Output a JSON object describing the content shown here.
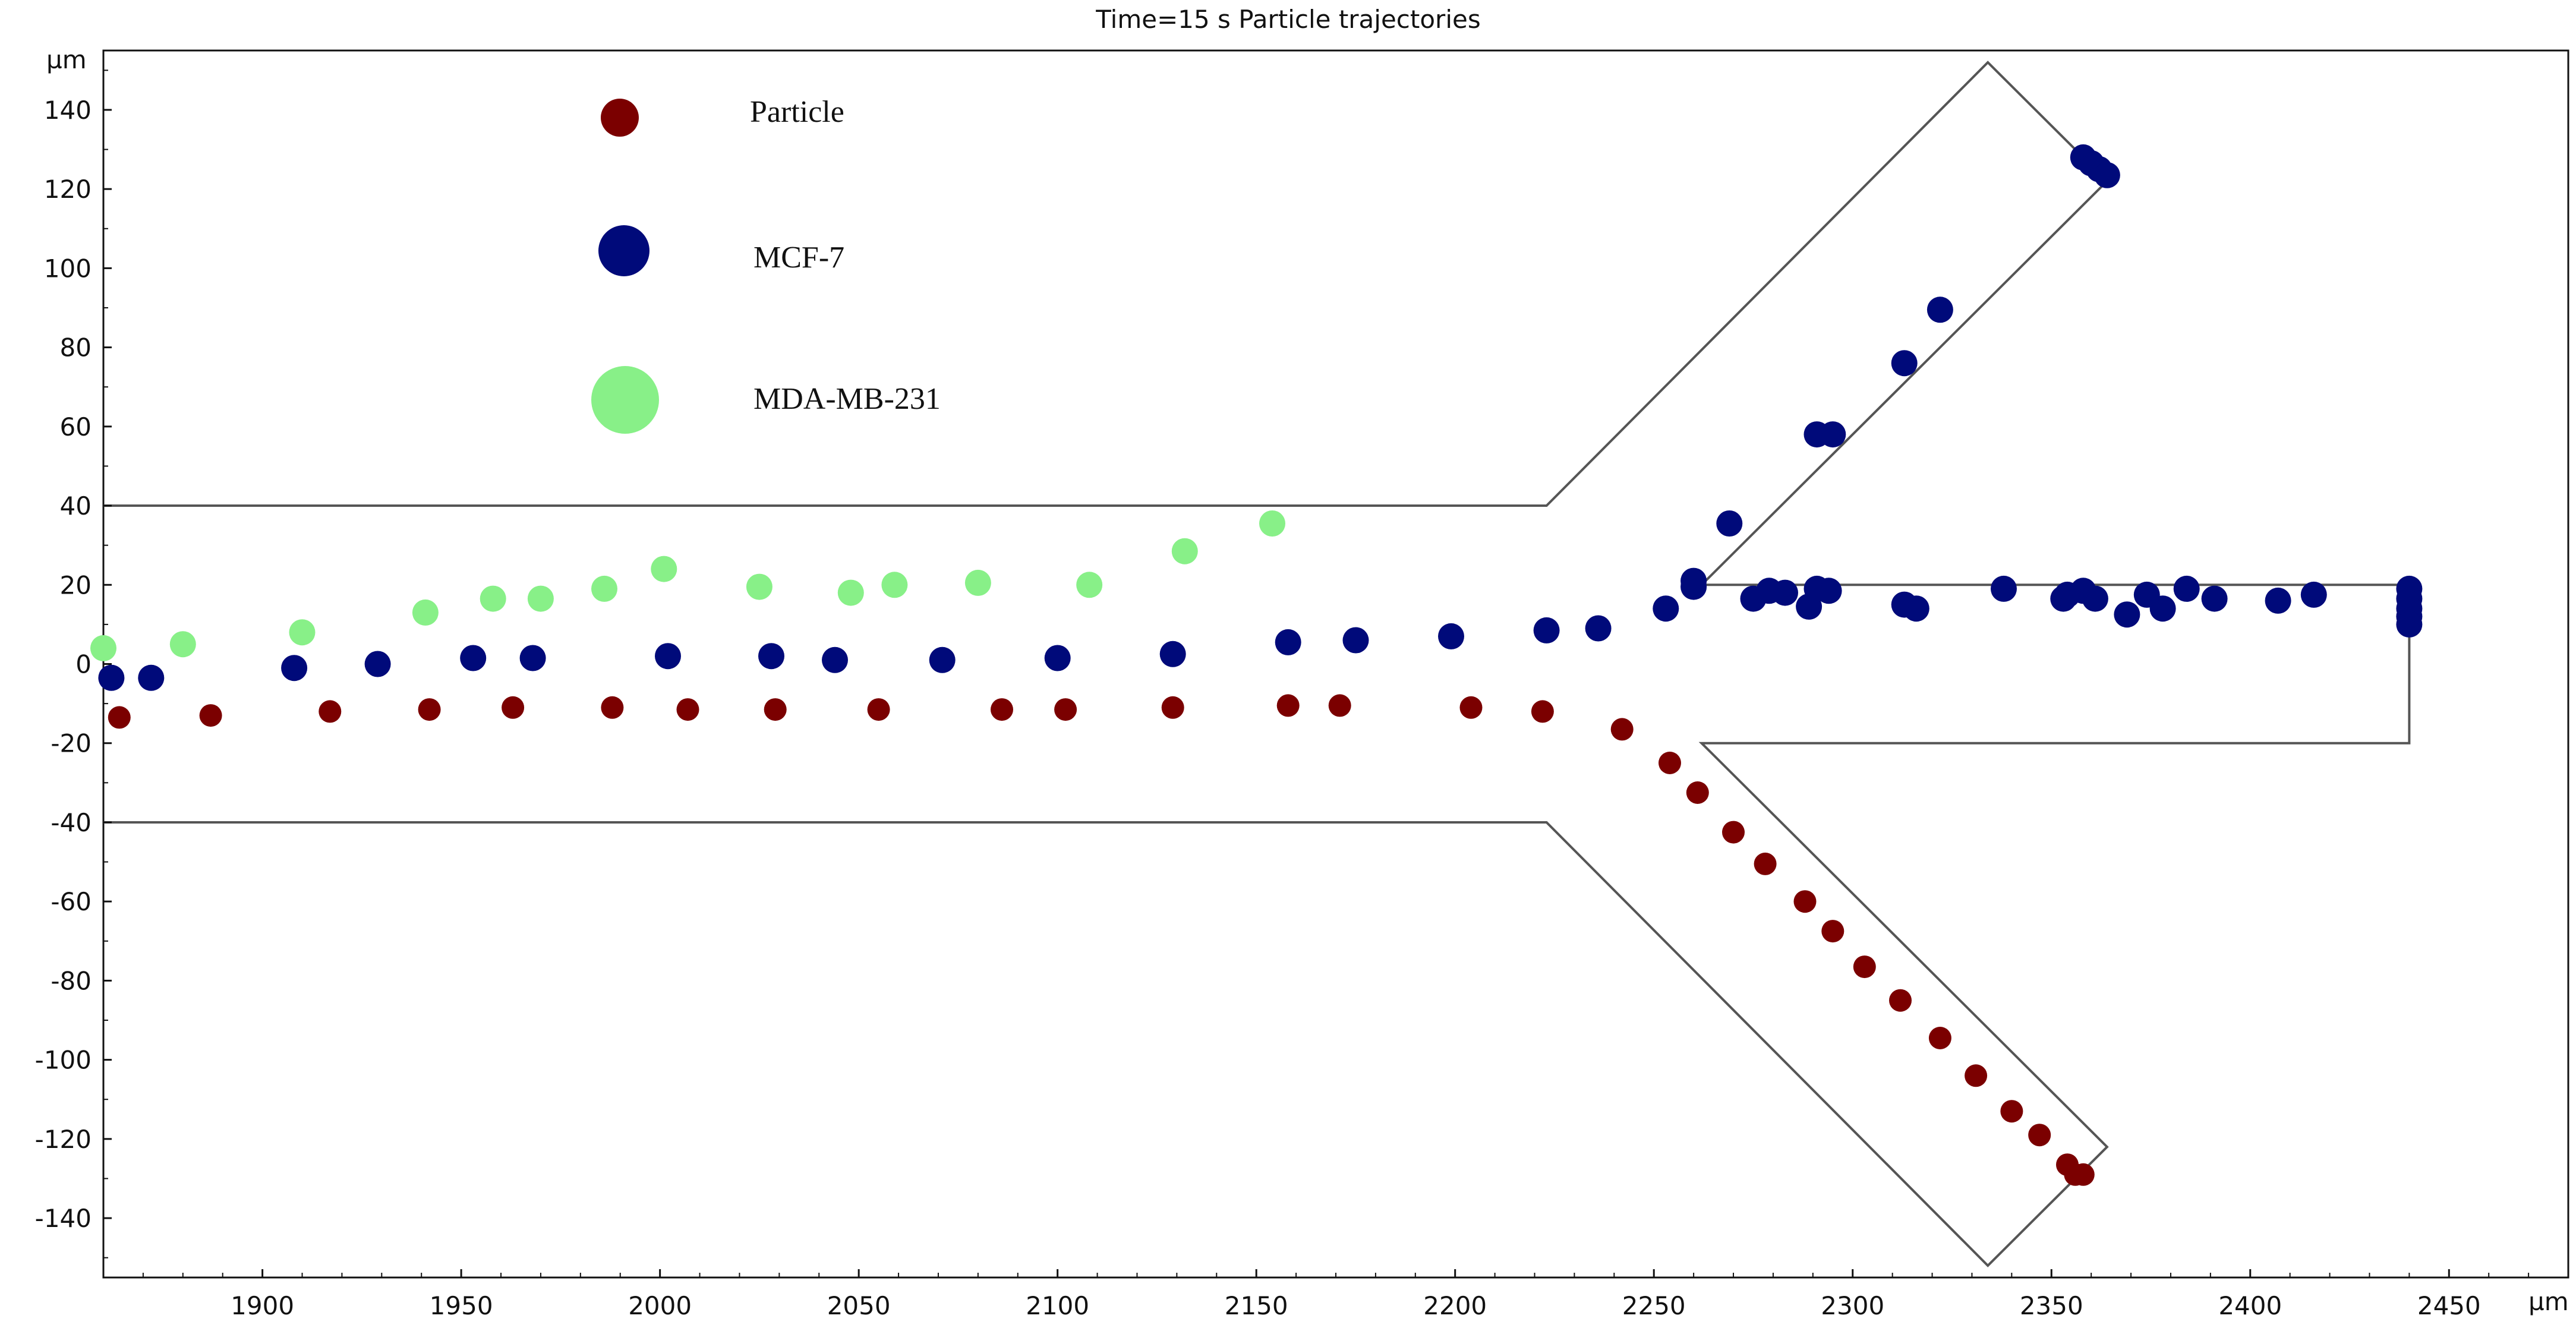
{
  "chart_data": {
    "type": "scatter",
    "title": "Time=15 s  Particle trajectories",
    "xlabel": "µm",
    "ylabel": "µm",
    "xlim": [
      1860,
      2480
    ],
    "ylim": [
      -155,
      155
    ],
    "xticks": [
      1900,
      1950,
      2000,
      2050,
      2100,
      2150,
      2200,
      2250,
      2300,
      2350,
      2400,
      2450
    ],
    "yticks": [
      140,
      120,
      100,
      80,
      60,
      40,
      20,
      0,
      -20,
      -40,
      -60,
      -80,
      -100,
      -120,
      -140
    ],
    "legend": {
      "placement": "top-left",
      "entries": [
        {
          "name": "Particle",
          "color": "#7b0000",
          "size": "small"
        },
        {
          "name": "MCF-7",
          "color": "#000a7a",
          "size": "medium"
        },
        {
          "name": "MDA-MB-231",
          "color": "#88f088",
          "size": "large"
        }
      ]
    },
    "channel_outline": [
      [
        [
          1860,
          40
        ],
        [
          2223,
          40
        ],
        [
          2334,
          152
        ],
        [
          2364,
          122
        ],
        [
          2262,
          20
        ],
        [
          2440,
          20
        ],
        [
          2440,
          -20
        ],
        [
          2262,
          -20
        ],
        [
          2364,
          -122
        ],
        [
          2334,
          -152
        ],
        [
          2223,
          -40
        ],
        [
          1860,
          -40
        ]
      ]
    ],
    "series": [
      {
        "name": "Particle",
        "color": "#7b0000",
        "points": [
          [
            1864,
            -13.5
          ],
          [
            1887,
            -13
          ],
          [
            1917,
            -12
          ],
          [
            1942,
            -11.5
          ],
          [
            1963,
            -11
          ],
          [
            1988,
            -11
          ],
          [
            2007,
            -11.5
          ],
          [
            2029,
            -11.5
          ],
          [
            2055,
            -11.5
          ],
          [
            2086,
            -11.5
          ],
          [
            2102,
            -11.5
          ],
          [
            2129,
            -11
          ],
          [
            2158,
            -10.5
          ],
          [
            2171,
            -10.5
          ],
          [
            2204,
            -11
          ],
          [
            2222,
            -12
          ],
          [
            2242,
            -16.5
          ],
          [
            2254,
            -25
          ],
          [
            2261,
            -32.5
          ],
          [
            2270,
            -42.5
          ],
          [
            2278,
            -50.5
          ],
          [
            2288,
            -60
          ],
          [
            2295,
            -67.5
          ],
          [
            2303,
            -76.5
          ],
          [
            2312,
            -85
          ],
          [
            2322,
            -94.5
          ],
          [
            2331,
            -104
          ],
          [
            2340,
            -113
          ],
          [
            2347,
            -119
          ],
          [
            2354,
            -126.5
          ],
          [
            2356,
            -129
          ],
          [
            2358,
            -129
          ]
        ]
      },
      {
        "name": "MCF-7",
        "color": "#000a7a",
        "points": [
          [
            1862,
            -3.5
          ],
          [
            1872,
            -3.5
          ],
          [
            1908,
            -1
          ],
          [
            1929,
            0
          ],
          [
            1953,
            1.5
          ],
          [
            1968,
            1.5
          ],
          [
            2002,
            2
          ],
          [
            2028,
            2
          ],
          [
            2044,
            1
          ],
          [
            2071,
            1
          ],
          [
            2100,
            1.5
          ],
          [
            2129,
            2.5
          ],
          [
            2158,
            5.5
          ],
          [
            2175,
            6
          ],
          [
            2199,
            7
          ],
          [
            2223,
            8.5
          ],
          [
            2236,
            9
          ],
          [
            2253,
            14
          ],
          [
            2260,
            19.5
          ],
          [
            2260,
            21
          ],
          [
            2269,
            35.5
          ],
          [
            2275,
            16.5
          ],
          [
            2279,
            18.5
          ],
          [
            2283,
            18
          ],
          [
            2289,
            14.5
          ],
          [
            2291,
            19
          ],
          [
            2294,
            18.5
          ],
          [
            2291,
            58
          ],
          [
            2295,
            58
          ],
          [
            2313,
            76
          ],
          [
            2322,
            89.5
          ],
          [
            2313,
            15
          ],
          [
            2316,
            14
          ],
          [
            2338,
            19
          ],
          [
            2353,
            16.5
          ],
          [
            2354,
            17.5
          ],
          [
            2358,
            18.5
          ],
          [
            2361,
            16.5
          ],
          [
            2369,
            12.5
          ],
          [
            2374,
            17.5
          ],
          [
            2378,
            14
          ],
          [
            2384,
            19
          ],
          [
            2391,
            16.5
          ],
          [
            2407,
            16
          ],
          [
            2416,
            17.5
          ],
          [
            2440,
            19
          ],
          [
            2440,
            16.5
          ],
          [
            2440,
            14
          ],
          [
            2440,
            12
          ],
          [
            2440,
            10
          ],
          [
            2358,
            128
          ],
          [
            2360,
            126.5
          ],
          [
            2362,
            125
          ],
          [
            2364,
            123.5
          ]
        ]
      },
      {
        "name": "MDA-MB-231",
        "color": "#88f088",
        "points": [
          [
            1860,
            4
          ],
          [
            1880,
            5
          ],
          [
            1910,
            8
          ],
          [
            1941,
            13
          ],
          [
            1958,
            16.5
          ],
          [
            1970,
            16.5
          ],
          [
            1986,
            19
          ],
          [
            2001,
            24
          ],
          [
            2025,
            19.5
          ],
          [
            2048,
            18
          ],
          [
            2059,
            20
          ],
          [
            2080,
            20.5
          ],
          [
            2108,
            20
          ],
          [
            2132,
            28.5
          ],
          [
            2154,
            35.5
          ]
        ]
      }
    ]
  }
}
